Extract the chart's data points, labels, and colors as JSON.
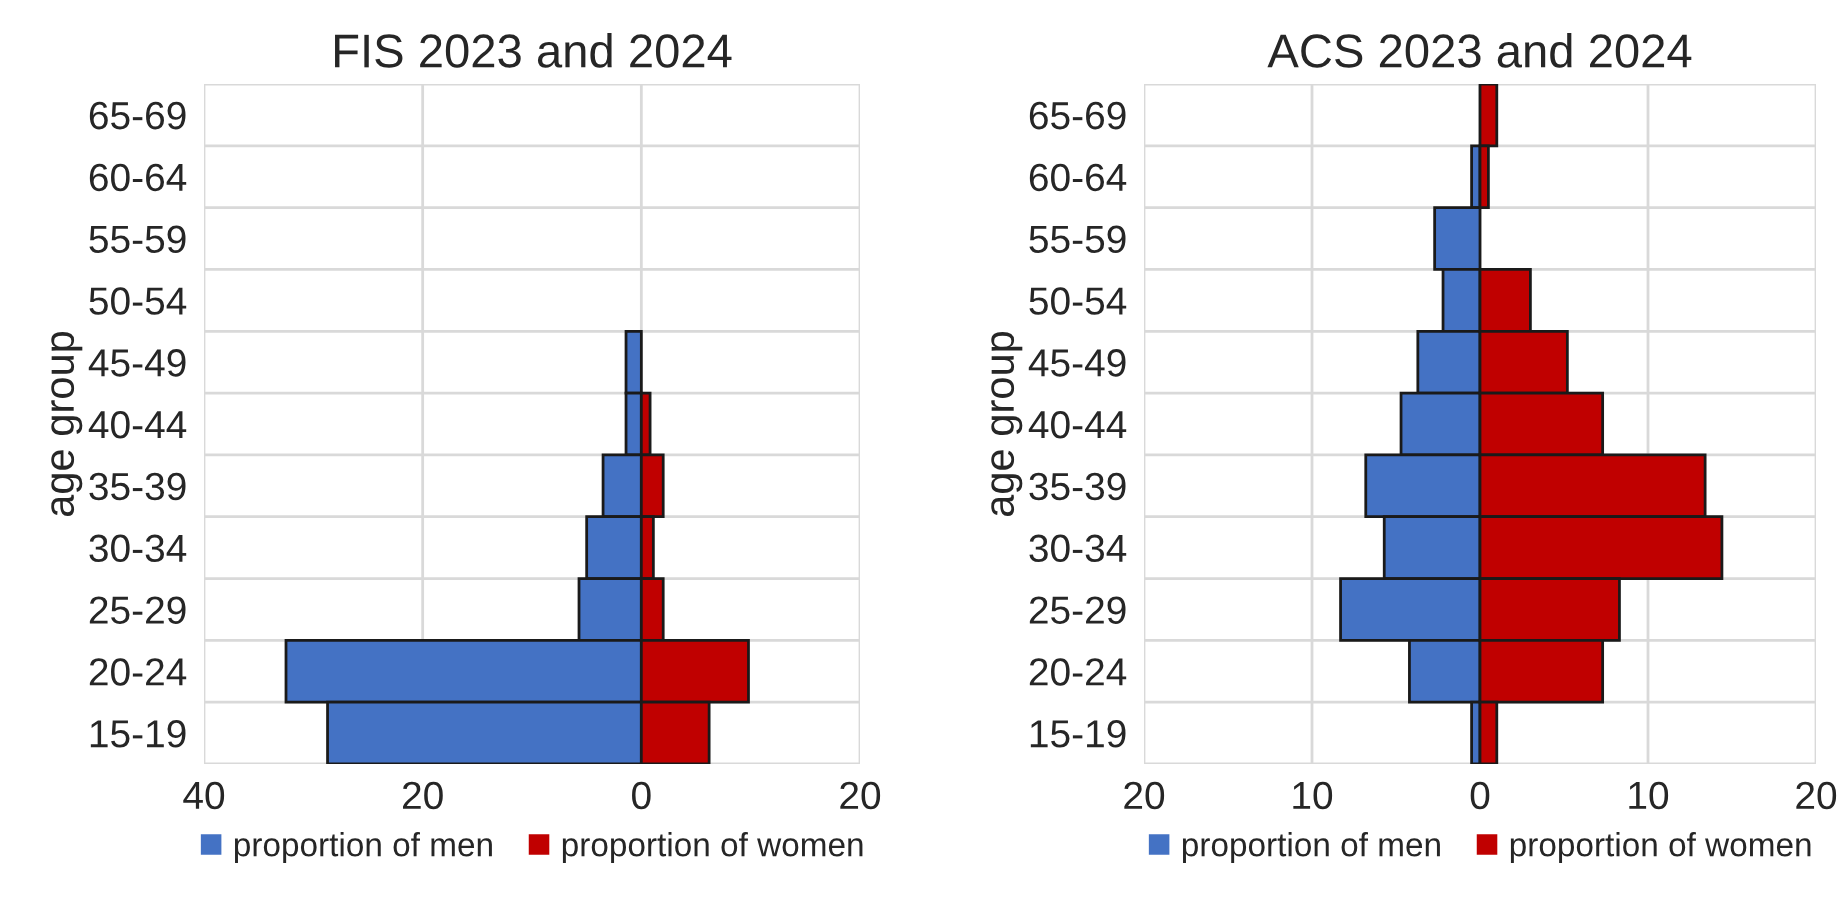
{
  "chart_data": [
    {
      "type": "bar",
      "orientation": "horizontal",
      "stacked": true,
      "title": "FIS 2023 and 2024",
      "ylabel": "age group",
      "categories": [
        "65-69",
        "60-64",
        "55-59",
        "50-54",
        "45-49",
        "40-44",
        "35-39",
        "30-34",
        "25-29",
        "20-24",
        "15-19"
      ],
      "series": [
        {
          "name": "proportion of men",
          "color": "#4472c4",
          "values": [
            null,
            null,
            null,
            null,
            -1.4,
            -1.4,
            -3.5,
            -5.0,
            -5.7,
            -32.5,
            -28.7
          ]
        },
        {
          "name": "proportion of women",
          "color": "#c00000",
          "values": [
            null,
            null,
            null,
            null,
            null,
            0.8,
            2.0,
            1.1,
            2.0,
            9.8,
            6.2
          ]
        }
      ],
      "xlim": [
        -40,
        20
      ],
      "xticks": [
        {
          "value": -40,
          "label": "40"
        },
        {
          "value": -20,
          "label": "20"
        },
        0,
        20
      ],
      "grid": true,
      "legend": "bottom"
    },
    {
      "type": "bar",
      "orientation": "horizontal",
      "stacked": true,
      "title": "ACS 2023 and 2024",
      "ylabel": "age group",
      "categories": [
        "65-69",
        "60-64",
        "55-59",
        "50-54",
        "45-49",
        "40-44",
        "35-39",
        "30-34",
        "25-29",
        "20-24",
        "15-19"
      ],
      "series": [
        {
          "name": "proportion of men",
          "color": "#4472c4",
          "values": [
            null,
            -0.5,
            -2.7,
            -2.2,
            -3.7,
            -4.7,
            -6.8,
            -5.7,
            -8.3,
            -4.2,
            -0.5
          ]
        },
        {
          "name": "proportion of women",
          "color": "#c00000",
          "values": [
            1.0,
            0.5,
            null,
            3.0,
            5.2,
            7.3,
            13.4,
            14.4,
            8.3,
            7.3,
            1.0
          ]
        }
      ],
      "xlim": [
        -20,
        20
      ],
      "xticks": [
        {
          "value": -20,
          "label": "20"
        },
        {
          "value": -10,
          "label": "10"
        },
        0,
        10,
        20
      ],
      "grid": true,
      "legend": "bottom"
    }
  ]
}
